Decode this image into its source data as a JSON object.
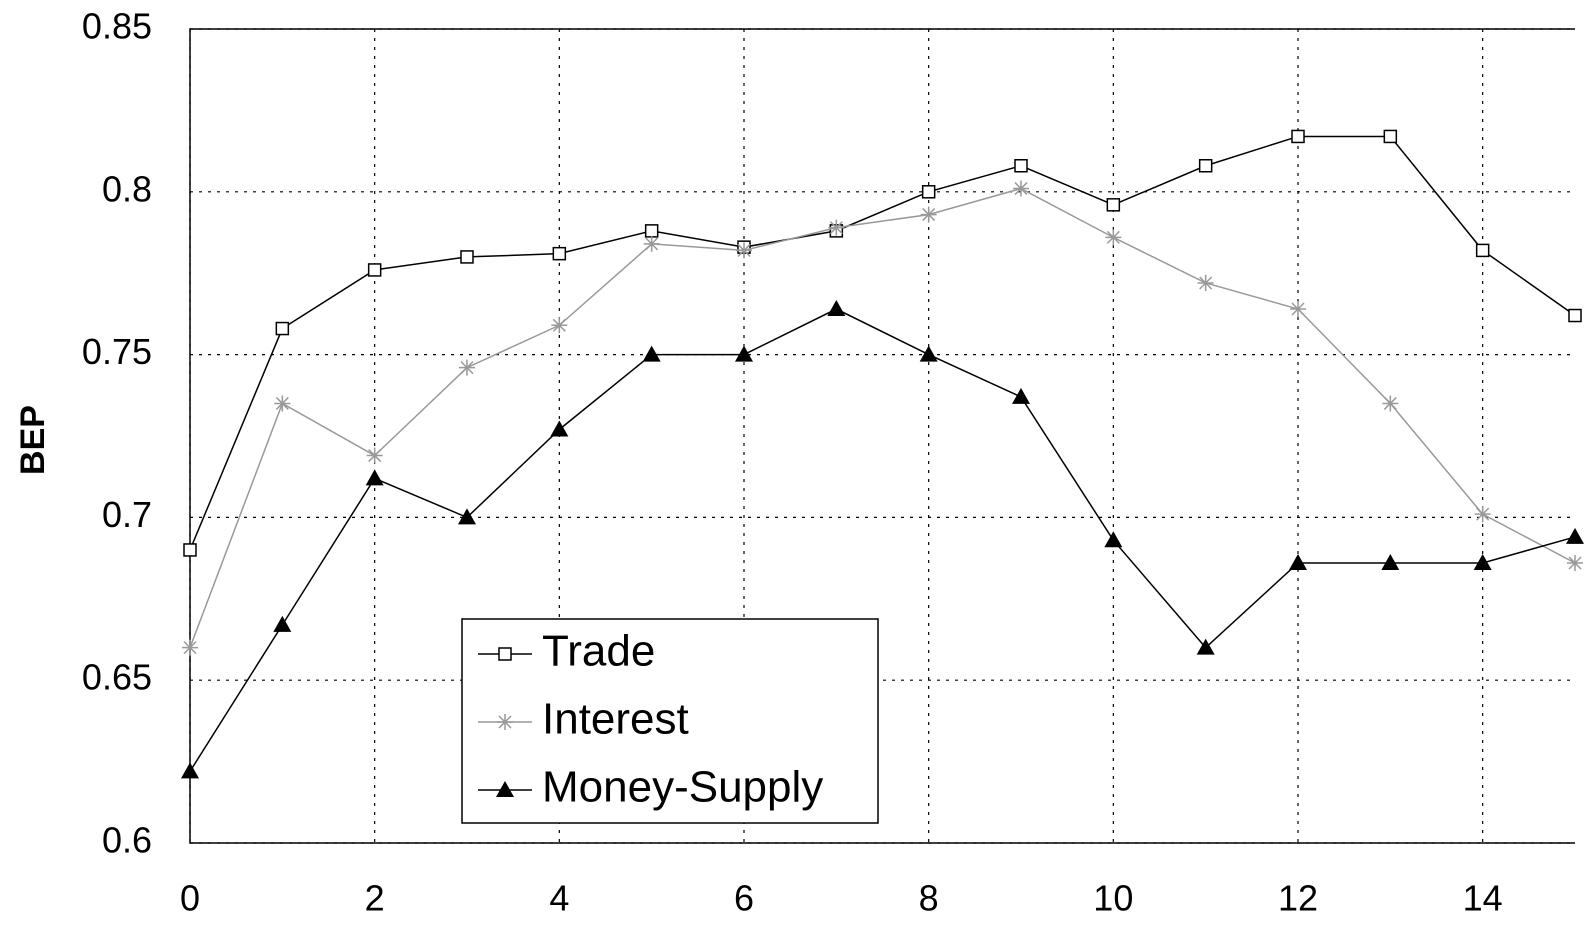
{
  "chart_data": {
    "type": "line",
    "y_label": "BEP",
    "x": [
      0,
      1,
      2,
      3,
      4,
      5,
      6,
      7,
      8,
      9,
      10,
      11,
      12,
      13,
      14,
      15
    ],
    "xlim": [
      0,
      15
    ],
    "xticks": [
      0,
      2,
      4,
      6,
      8,
      10,
      12,
      14
    ],
    "ylim": [
      0.6,
      0.85
    ],
    "yticks": [
      0.6,
      0.65,
      0.7,
      0.75,
      0.8,
      0.85
    ],
    "grid": true,
    "series": [
      {
        "name": "Trade",
        "color": "#000000",
        "marker": "square",
        "values": [
          0.69,
          0.758,
          0.776,
          0.78,
          0.781,
          0.788,
          0.783,
          0.788,
          0.8,
          0.808,
          0.796,
          0.808,
          0.817,
          0.817,
          0.782,
          0.762
        ]
      },
      {
        "name": "Interest",
        "color": "#999999",
        "marker": "asterisk",
        "values": [
          0.66,
          0.735,
          0.719,
          0.746,
          0.759,
          0.784,
          0.782,
          0.789,
          0.793,
          0.801,
          0.786,
          0.772,
          0.764,
          0.735,
          0.701,
          0.686
        ]
      },
      {
        "name": "Money-Supply",
        "color": "#000000",
        "marker": "triangle",
        "values": [
          0.622,
          0.667,
          0.712,
          0.7,
          0.727,
          0.75,
          0.75,
          0.764,
          0.75,
          0.737,
          0.693,
          0.66,
          0.686,
          0.686,
          0.686,
          0.694
        ]
      }
    ]
  }
}
